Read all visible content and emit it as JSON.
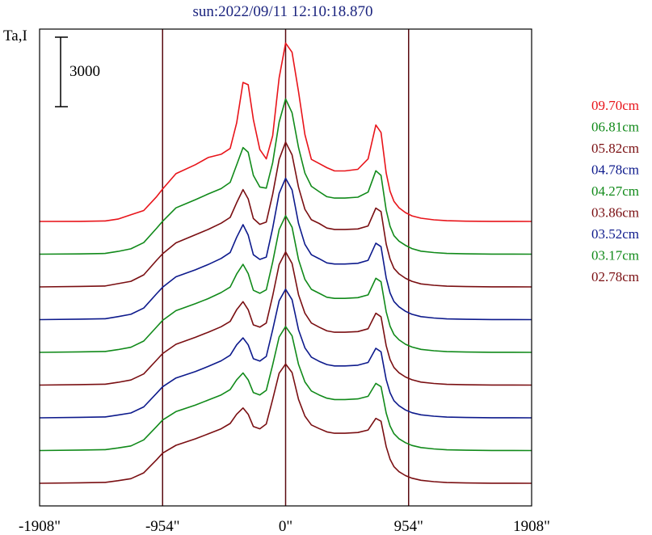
{
  "chart_data": {
    "type": "line",
    "title": "sun:2022/09/11 12:10:18.870",
    "ylabel": "Ta,I",
    "scale_bar_label": "3000",
    "scale_bar_value": 3000,
    "xlim": [
      -1908,
      1908
    ],
    "x_ticks": [
      {
        "value": -1908,
        "label": "-1908\""
      },
      {
        "value": -954,
        "label": "-954\""
      },
      {
        "value": 0,
        "label": "0\""
      },
      {
        "value": 954,
        "label": "954\""
      },
      {
        "value": 1908,
        "label": "1908\""
      }
    ],
    "vertical_markers": [
      -954,
      0,
      954
    ],
    "x": [
      -1908,
      -1600,
      -1400,
      -1300,
      -1200,
      -1100,
      -1000,
      -954,
      -850,
      -700,
      -600,
      -500,
      -430,
      -380,
      -330,
      -290,
      -250,
      -200,
      -150,
      -100,
      -50,
      0,
      50,
      100,
      150,
      200,
      260,
      320,
      380,
      460,
      560,
      640,
      700,
      740,
      780,
      810,
      840,
      880,
      930,
      980,
      1050,
      1150,
      1250,
      1400,
      1600,
      1908
    ],
    "series": [
      {
        "name": "09.70cm",
        "color": "#e8141a",
        "values": [
          0,
          5,
          20,
          100,
          290,
          470,
          1070,
          1400,
          2060,
          2450,
          2760,
          2900,
          3150,
          4250,
          6000,
          5900,
          4400,
          3100,
          2700,
          3700,
          6200,
          7700,
          7300,
          5600,
          3750,
          2680,
          2500,
          2320,
          2180,
          2180,
          2250,
          2700,
          4160,
          3840,
          2090,
          1300,
          870,
          590,
          380,
          240,
          140,
          70,
          30,
          10,
          5,
          0
        ]
      },
      {
        "name": "06.81cm",
        "color": "#118a1a",
        "values": [
          0,
          10,
          30,
          120,
          230,
          500,
          1120,
          1420,
          2000,
          2350,
          2600,
          2830,
          3100,
          3850,
          4600,
          4400,
          3400,
          2900,
          2850,
          3950,
          5700,
          6700,
          6100,
          4600,
          3500,
          2930,
          2700,
          2480,
          2420,
          2420,
          2460,
          2680,
          3600,
          3400,
          1900,
          1200,
          800,
          560,
          380,
          240,
          130,
          70,
          30,
          15,
          5,
          0
        ]
      },
      {
        "name": "05.82cm",
        "color": "#7a0f12",
        "values": [
          0,
          20,
          40,
          140,
          240,
          520,
          1150,
          1430,
          1900,
          2250,
          2480,
          2750,
          3000,
          3630,
          4200,
          3800,
          2950,
          2700,
          2800,
          4000,
          5500,
          6250,
          5700,
          4300,
          3350,
          2900,
          2740,
          2540,
          2480,
          2480,
          2500,
          2630,
          3400,
          3250,
          1850,
          1200,
          800,
          560,
          370,
          240,
          130,
          70,
          30,
          15,
          5,
          0
        ]
      },
      {
        "name": "04.78cm",
        "color": "#0d1a8c",
        "values": [
          0,
          20,
          40,
          130,
          230,
          500,
          1120,
          1400,
          1850,
          2150,
          2380,
          2640,
          2900,
          3550,
          4100,
          3650,
          2800,
          2600,
          2700,
          3950,
          5450,
          6100,
          5600,
          4150,
          3250,
          2800,
          2630,
          2450,
          2400,
          2400,
          2430,
          2560,
          3300,
          3150,
          1800,
          1150,
          780,
          550,
          360,
          230,
          130,
          70,
          30,
          15,
          5,
          0
        ]
      },
      {
        "name": "04.27cm",
        "color": "#118a1a",
        "values": [
          0,
          20,
          40,
          120,
          220,
          490,
          1100,
          1380,
          1800,
          2100,
          2320,
          2580,
          2820,
          3380,
          3800,
          3400,
          2680,
          2550,
          2700,
          3900,
          5300,
          5900,
          5400,
          4000,
          3150,
          2720,
          2550,
          2380,
          2330,
          2330,
          2360,
          2480,
          3200,
          3050,
          1750,
          1130,
          770,
          540,
          350,
          230,
          130,
          70,
          30,
          15,
          5,
          0
        ]
      },
      {
        "name": "03.86cm",
        "color": "#7a0f12",
        "values": [
          0,
          20,
          40,
          120,
          220,
          480,
          1080,
          1360,
          1760,
          2060,
          2280,
          2520,
          2750,
          3250,
          3600,
          3250,
          2600,
          2500,
          2680,
          3850,
          5200,
          5750,
          5250,
          3900,
          3100,
          2680,
          2500,
          2340,
          2280,
          2280,
          2310,
          2430,
          3100,
          2950,
          1700,
          1100,
          760,
          530,
          350,
          230,
          130,
          70,
          30,
          15,
          5,
          0
        ]
      },
      {
        "name": "03.52cm",
        "color": "#0d1a8c",
        "values": [
          0,
          20,
          40,
          120,
          210,
          470,
          1060,
          1340,
          1720,
          2000,
          2220,
          2460,
          2700,
          3150,
          3450,
          3150,
          2550,
          2450,
          2650,
          3800,
          5050,
          5550,
          5100,
          3800,
          3020,
          2620,
          2440,
          2300,
          2240,
          2240,
          2270,
          2390,
          3000,
          2850,
          1650,
          1080,
          740,
          520,
          340,
          220,
          130,
          70,
          30,
          15,
          5,
          0
        ]
      },
      {
        "name": "03.17cm",
        "color": "#118a1a",
        "values": [
          0,
          20,
          40,
          110,
          200,
          460,
          1040,
          1320,
          1680,
          1960,
          2180,
          2400,
          2630,
          3050,
          3350,
          3050,
          2500,
          2400,
          2600,
          3700,
          4900,
          5350,
          4950,
          3720,
          2960,
          2570,
          2400,
          2260,
          2200,
          2200,
          2230,
          2340,
          2900,
          2760,
          1620,
          1060,
          730,
          510,
          340,
          220,
          130,
          70,
          30,
          15,
          5,
          0
        ]
      },
      {
        "name": "02.78cm",
        "color": "#7a0f12",
        "values": [
          0,
          20,
          40,
          110,
          200,
          450,
          1020,
          1300,
          1640,
          1920,
          2130,
          2350,
          2580,
          2980,
          3250,
          2980,
          2450,
          2350,
          2560,
          3620,
          4750,
          5150,
          4780,
          3620,
          2900,
          2520,
          2360,
          2220,
          2160,
          2160,
          2190,
          2300,
          2800,
          2680,
          1580,
          1040,
          720,
          500,
          330,
          220,
          130,
          70,
          30,
          15,
          5,
          0
        ]
      }
    ]
  }
}
